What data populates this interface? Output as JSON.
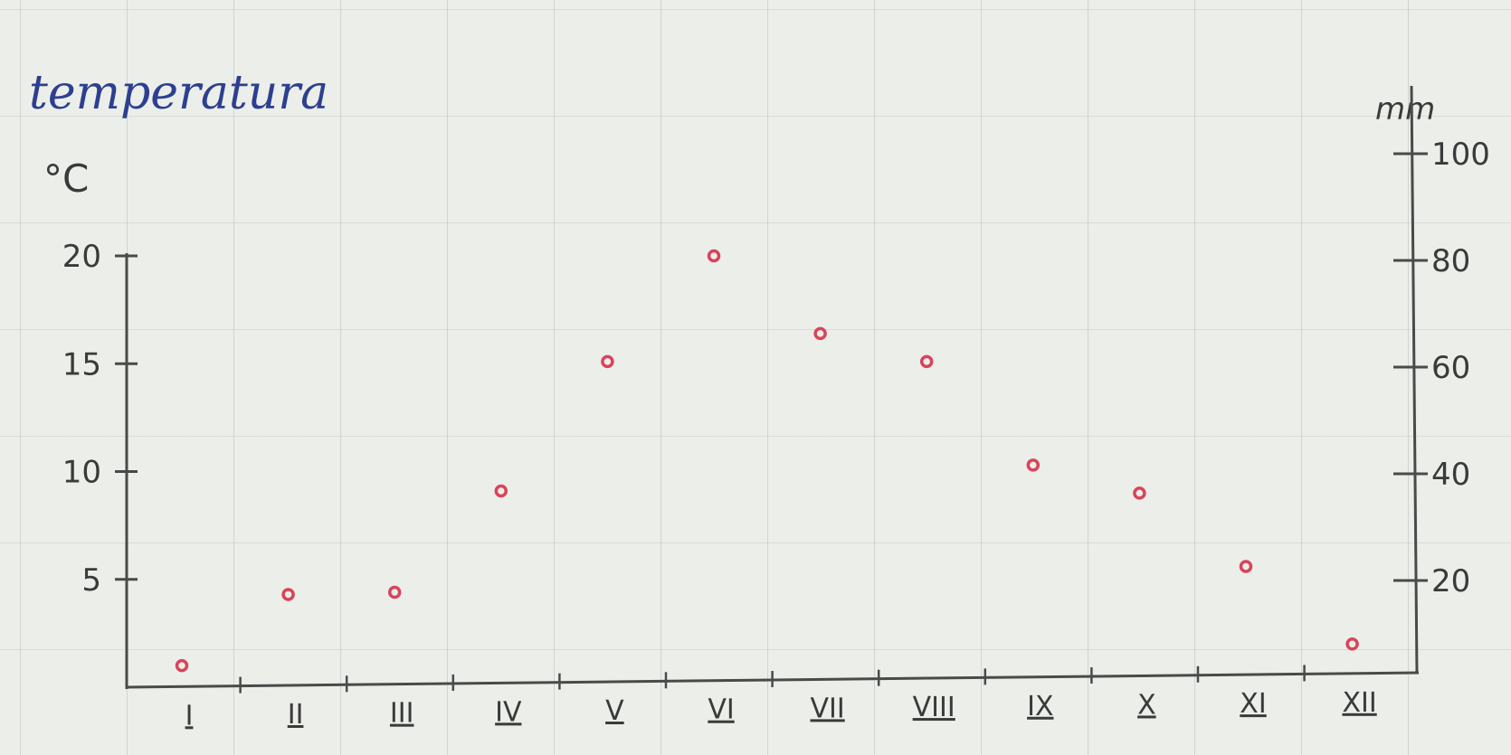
{
  "chart_data": {
    "type": "scatter",
    "title": "temperatura",
    "ylabel": "°C",
    "ylabel_right": "mm",
    "categories": [
      "I",
      "II",
      "III",
      "IV",
      "V",
      "VI",
      "VII",
      "VIII",
      "IX",
      "X",
      "XI",
      "XII"
    ],
    "series": [
      {
        "values": [
          1,
          4.3,
          4.4,
          9.1,
          15.1,
          20,
          16.4,
          15.1,
          10.3,
          9,
          5.6,
          2
        ]
      }
    ],
    "ylim": [
      0,
      20
    ],
    "y_ticks": [
      5,
      10,
      15,
      20
    ],
    "ylim_right": [
      0,
      100
    ],
    "y_right_ticks": [
      20,
      40,
      60,
      80,
      100
    ],
    "grid": true,
    "colors": {
      "points": "#d8445a",
      "axis": "#4a4a4a",
      "title": "#2d3f8f",
      "paper": "#eceeea"
    }
  }
}
